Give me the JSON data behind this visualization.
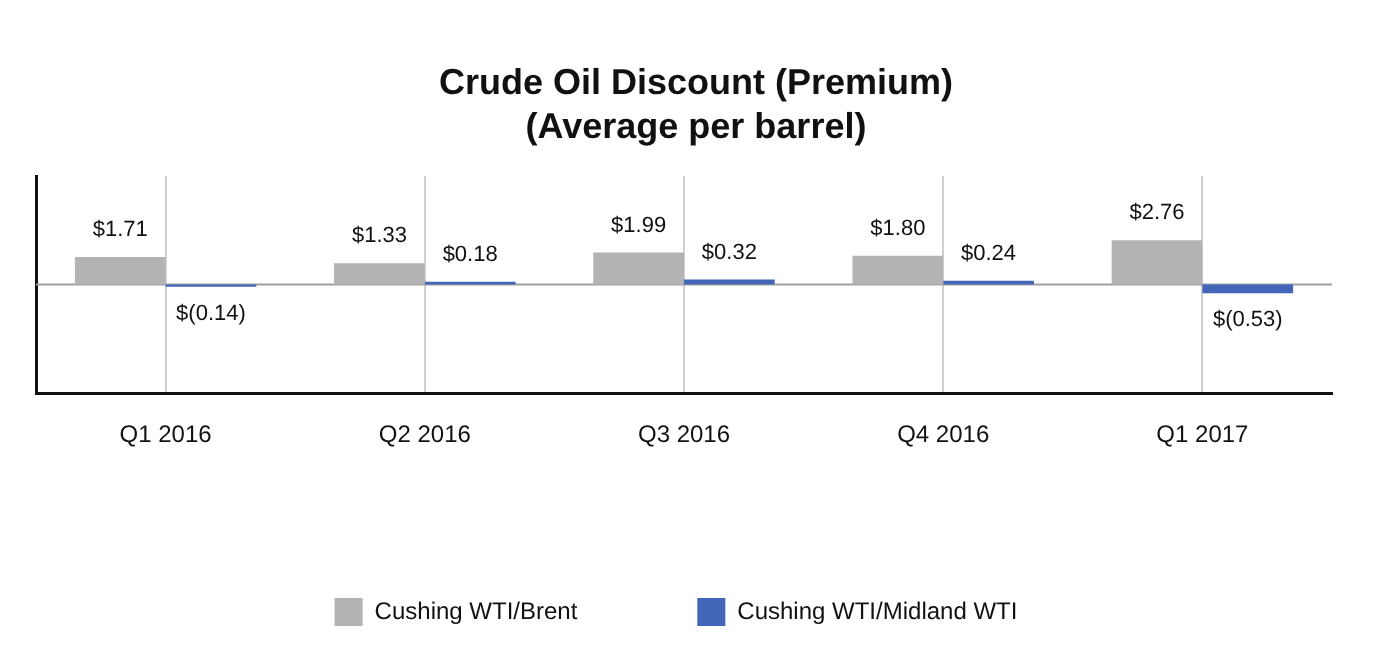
{
  "chart_data": {
    "type": "bar",
    "title": "Crude Oil Discount (Premium)",
    "subtitle": "(Average per barrel)",
    "categories": [
      "Q1 2016",
      "Q2 2016",
      "Q3 2016",
      "Q4 2016",
      "Q1 2017"
    ],
    "series": [
      {
        "name": "Cushing WTI/Brent",
        "color": "#b3b3b6",
        "values": [
          1.71,
          1.33,
          1.99,
          1.8,
          2.76
        ],
        "value_labels": [
          "$1.71",
          "$1.33",
          "$1.99",
          "$1.80",
          "$2.76"
        ]
      },
      {
        "name": "Cushing WTI/Midland WTI",
        "color": "#4466b8",
        "values": [
          -0.14,
          0.18,
          0.32,
          0.24,
          -0.53
        ],
        "value_labels": [
          "$(0.14)",
          "$0.18",
          "$0.32",
          "$0.24",
          "$(0.53)"
        ]
      }
    ],
    "ylim": [
      -6.75,
      6.75
    ],
    "tick_labels": "x",
    "grid": "x",
    "legend": "bottom",
    "ref_lines": [
      {
        "axis": "y",
        "value": 0,
        "color": "#a0a0a0"
      }
    ]
  }
}
